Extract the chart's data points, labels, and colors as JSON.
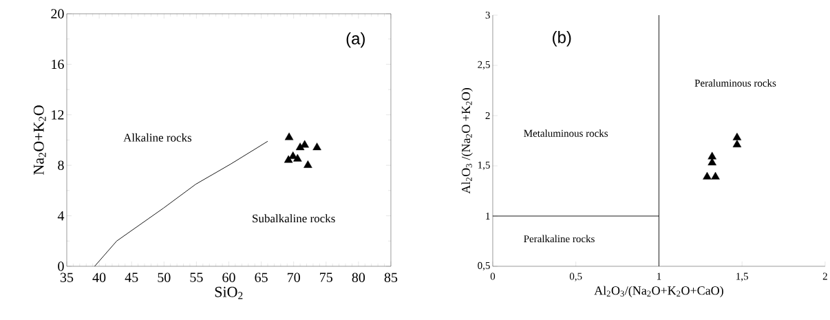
{
  "chart_data": [
    {
      "type": "scatter",
      "title": "(a)",
      "xlabel": "SiO$_{2}$",
      "ylabel": "Na$_{2}$O+K$_{2}$O",
      "xlim": [
        35,
        85
      ],
      "ylim": [
        0,
        20
      ],
      "xticks": [
        35,
        40,
        45,
        50,
        55,
        60,
        65,
        70,
        75,
        80,
        85
      ],
      "yticks": [
        0,
        4,
        8,
        12,
        16,
        20
      ],
      "grid": false,
      "series": [
        {
          "type": "line",
          "color": "#000000",
          "marker": "none",
          "line_style": "solid",
          "x": [
            39.3,
            42.7,
            49.9,
            54.9,
            60.3,
            66
          ],
          "values": [
            0,
            2.0,
            4.6,
            6.5,
            8.1,
            9.9
          ]
        },
        {
          "color": "#000000",
          "marker": "triangle",
          "x": [
            69.3,
            73.6,
            72.2,
            69.2,
            70.6,
            71.0,
            71.7,
            69.9
          ],
          "values": [
            10.2,
            9.4,
            8.0,
            8.4,
            8.5,
            9.4,
            9.6,
            8.7
          ]
        }
      ],
      "annotations": [
        "Alkaline rocks",
        "Subalkaline rocks"
      ]
    },
    {
      "type": "scatter",
      "title": "(b)",
      "xlabel": "Al$_{2}$O$_{3}$/(Na$_{2}$O+K$_{2}$O+CaO)",
      "ylabel": "Al$_{2}$O$_{3}$ /(Na$_{2}$O +K$_{2}$O)",
      "xlim": [
        0,
        2
      ],
      "ylim": [
        0.5,
        3
      ],
      "xticks": [
        0,
        {
          "value": 0.5,
          "label": "0,5"
        },
        1,
        {
          "value": 1.5,
          "label": "1,5"
        },
        2
      ],
      "yticks": [
        {
          "value": 0.5,
          "label": "0,5"
        },
        1,
        {
          "value": 1.5,
          "label": "1,5"
        },
        2,
        {
          "value": 2.5,
          "label": "2,5"
        },
        3
      ],
      "grid": false,
      "series": [
        {
          "type": "line",
          "color": "#000000",
          "marker": "none",
          "line_style": "solid",
          "x": [
            0,
            1
          ],
          "values": [
            1,
            1
          ]
        },
        {
          "type": "line",
          "color": "#000000",
          "marker": "none",
          "line_style": "solid",
          "x": [
            1,
            1
          ],
          "values": [
            0.5,
            3
          ]
        },
        {
          "color": "#000000",
          "marker": "triangle",
          "x": [
            1.47,
            1.47,
            1.32,
            1.32,
            1.29,
            1.34
          ],
          "values": [
            1.78,
            1.71,
            1.59,
            1.53,
            1.39,
            1.39
          ]
        }
      ],
      "annotations": [
        "Metaluminous rocks",
        "Peralkaline rocks",
        "Peraluminous rocks"
      ]
    }
  ]
}
